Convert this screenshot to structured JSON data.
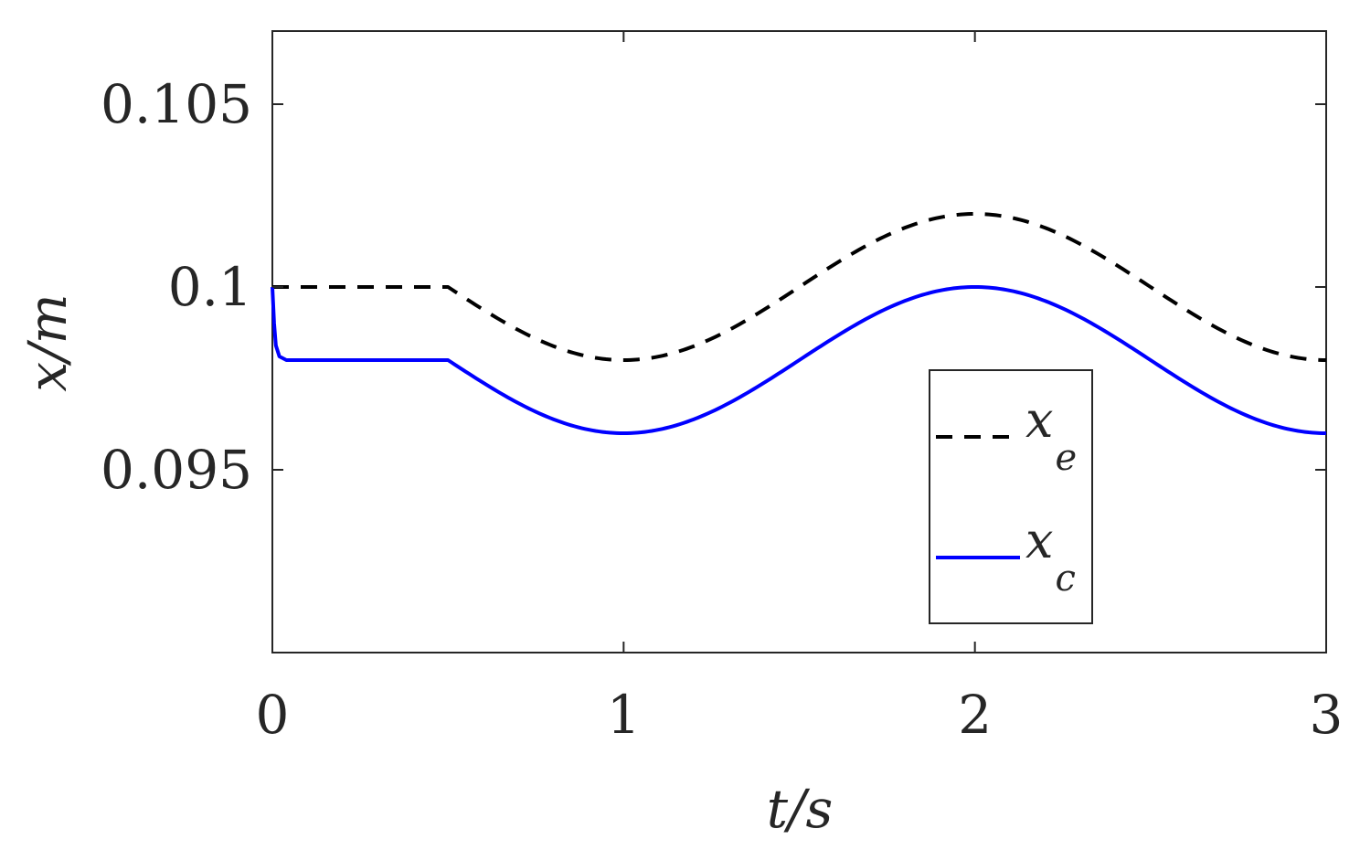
{
  "chart_data": {
    "type": "line",
    "title": "",
    "xlabel": "t/s",
    "ylabel": "x/m",
    "xlim": [
      0,
      3
    ],
    "ylim": [
      0.09,
      0.107
    ],
    "xticks": [
      0,
      1,
      2,
      3
    ],
    "xtick_labels": [
      "0",
      "1",
      "2",
      "3"
    ],
    "yticks": [
      0.095,
      0.1,
      0.105
    ],
    "ytick_labels": [
      "0.095",
      "0.1",
      "0.105"
    ],
    "grid": false,
    "legend_position": "lower-right",
    "series": [
      {
        "name": "x_e",
        "legend_main": "x",
        "legend_sub": "e",
        "color": "#000000",
        "dash": "dashed",
        "x": [
          0,
          0.25,
          0.5,
          0.625,
          0.75,
          0.875,
          1.0,
          1.125,
          1.25,
          1.375,
          1.5,
          1.625,
          1.75,
          1.875,
          2.0,
          2.125,
          2.25,
          2.375,
          2.5,
          2.625,
          2.75,
          2.875,
          3.0
        ],
        "values": [
          0.1,
          0.1,
          0.1,
          0.09929,
          0.09859,
          0.09815,
          0.098,
          0.09815,
          0.09859,
          0.09923,
          0.1,
          0.10077,
          0.10141,
          0.10185,
          0.102,
          0.10185,
          0.10141,
          0.10077,
          0.1,
          0.09923,
          0.09859,
          0.09815,
          0.098
        ]
      },
      {
        "name": "x_c",
        "legend_main": "x",
        "legend_sub": "c",
        "color": "#0000ff",
        "dash": "solid",
        "x": [
          0,
          0.005,
          0.01,
          0.02,
          0.04,
          0.25,
          0.5,
          0.625,
          0.75,
          0.875,
          1.0,
          1.125,
          1.25,
          1.375,
          1.5,
          1.625,
          1.75,
          1.875,
          2.0,
          2.125,
          2.25,
          2.375,
          2.5,
          2.625,
          2.75,
          2.875,
          3.0
        ],
        "values": [
          0.1,
          0.099,
          0.0984,
          0.0981,
          0.098,
          0.098,
          0.098,
          0.09729,
          0.09659,
          0.09615,
          0.096,
          0.09615,
          0.09659,
          0.09723,
          0.098,
          0.09877,
          0.09941,
          0.09985,
          0.1,
          0.09985,
          0.09941,
          0.09877,
          0.098,
          0.09723,
          0.09659,
          0.09615,
          0.096
        ]
      }
    ]
  }
}
